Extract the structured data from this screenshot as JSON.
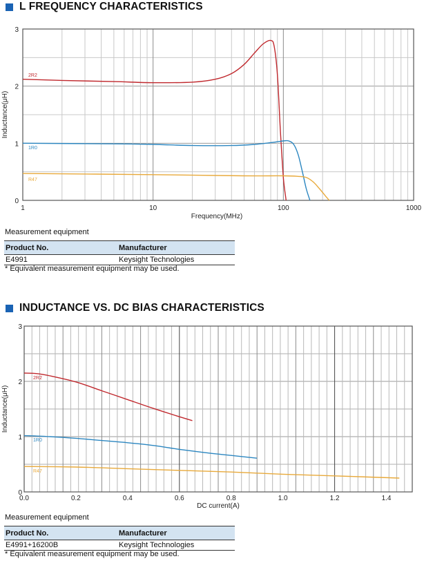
{
  "sections": [
    {
      "title": "L FREQUENCY CHARACTERISTICS",
      "measurement_label": "Measurement equipment",
      "table": {
        "headers": [
          "Product No.",
          "Manufacturer"
        ],
        "rows": [
          [
            "E4991",
            "Keysight Technologies"
          ]
        ]
      },
      "note": "* Equivalent measurement equipment may be used."
    },
    {
      "title": "INDUCTANCE VS. DC BIAS CHARACTERISTICS",
      "measurement_label": "Measurement equipment",
      "table": {
        "headers": [
          "Product No.",
          "Manufacturer"
        ],
        "rows": [
          [
            "E4991+16200B",
            "Keysight Technologies"
          ]
        ]
      },
      "note": "* Equivalent measurement equipment may be used."
    }
  ],
  "colors": {
    "accent": "#1a63b4",
    "2R2": "#c0282d",
    "1R0": "#2b86c0",
    "R47": "#e8a93a",
    "table_header_bg": "#d3e3f1"
  },
  "chart_data": [
    {
      "type": "line",
      "title": "L FREQUENCY CHARACTERISTICS",
      "xlabel": "Frequency(MHz)",
      "ylabel": "Inductance(μH)",
      "xscale": "log",
      "xlim": [
        1,
        1000
      ],
      "ylim": [
        0,
        3
      ],
      "xticks": [
        "1",
        "10",
        "100",
        "1000"
      ],
      "yticks": [
        "0",
        "1",
        "2",
        "3"
      ],
      "grid": true,
      "series": [
        {
          "name": "2R2",
          "x": [
            1,
            2,
            5,
            10,
            20,
            30,
            40,
            50,
            60,
            70,
            80,
            85,
            90,
            95,
            100,
            105
          ],
          "values": [
            2.12,
            2.1,
            2.08,
            2.06,
            2.07,
            2.12,
            2.22,
            2.38,
            2.58,
            2.74,
            2.8,
            2.7,
            2.2,
            1.2,
            0.4,
            0.0
          ]
        },
        {
          "name": "1R0",
          "x": [
            1,
            5,
            10,
            20,
            40,
            60,
            80,
            100,
            110,
            120,
            130,
            140,
            150,
            160
          ],
          "values": [
            1.0,
            0.99,
            0.98,
            0.96,
            0.96,
            0.98,
            1.01,
            1.04,
            1.04,
            0.98,
            0.8,
            0.5,
            0.2,
            0.0
          ]
        },
        {
          "name": "R47",
          "x": [
            1,
            10,
            50,
            100,
            130,
            150,
            170,
            190,
            210,
            225
          ],
          "values": [
            0.47,
            0.45,
            0.43,
            0.43,
            0.42,
            0.4,
            0.32,
            0.2,
            0.08,
            0.0
          ]
        }
      ]
    },
    {
      "type": "line",
      "title": "INDUCTANCE VS. DC BIAS CHARACTERISTICS",
      "xlabel": "DC current(A)",
      "ylabel": "Inductance(μH)",
      "xlim": [
        0,
        1.5
      ],
      "ylim": [
        0,
        3
      ],
      "xticks": [
        "0.0",
        "0.2",
        "0.4",
        "0.6",
        "0.8",
        "1.0",
        "1.2",
        "1.4"
      ],
      "yticks": [
        "0",
        "1",
        "2",
        "3"
      ],
      "grid": true,
      "series": [
        {
          "name": "2R2",
          "x": [
            0.0,
            0.05,
            0.1,
            0.2,
            0.3,
            0.4,
            0.5,
            0.6,
            0.65
          ],
          "values": [
            2.15,
            2.14,
            2.1,
            1.99,
            1.83,
            1.67,
            1.51,
            1.36,
            1.29
          ]
        },
        {
          "name": "1R0",
          "x": [
            0.0,
            0.1,
            0.2,
            0.3,
            0.4,
            0.5,
            0.6,
            0.7,
            0.8,
            0.9
          ],
          "values": [
            1.02,
            1.0,
            0.97,
            0.93,
            0.89,
            0.84,
            0.77,
            0.71,
            0.66,
            0.61
          ]
        },
        {
          "name": "R47",
          "x": [
            0.0,
            0.2,
            0.4,
            0.6,
            0.8,
            1.0,
            1.2,
            1.45
          ],
          "values": [
            0.46,
            0.45,
            0.42,
            0.39,
            0.36,
            0.32,
            0.29,
            0.25
          ]
        }
      ]
    }
  ]
}
